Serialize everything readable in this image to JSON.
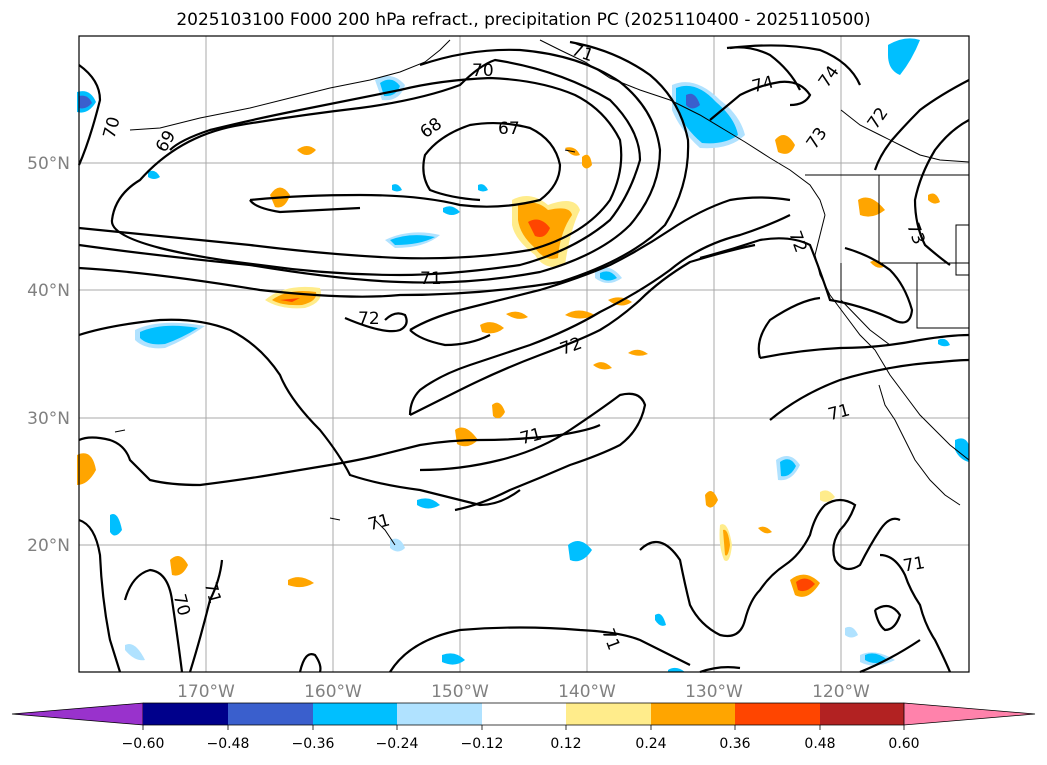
{
  "title": "2025103100 F000 200 hPa refract., precipitation PC (2025110400 - 2025110500)",
  "lon_labels": [
    "170°W",
    "160°W",
    "150°W",
    "140°W",
    "130°W",
    "120°W"
  ],
  "lat_labels": [
    "50°N",
    "40°N",
    "30°N",
    "20°N"
  ],
  "colorbar": {
    "colors": [
      "#9932CC",
      "#00008B",
      "#3A5FCD",
      "#00BFFF",
      "#B0E2FF",
      "#FFFFFF",
      "#FFEC8B",
      "#FFA500",
      "#FF4500",
      "#B22222",
      "#FF82AB"
    ],
    "ticks": [
      "−0.60",
      "−0.48",
      "−0.36",
      "−0.24",
      "−0.12",
      "0.12",
      "0.24",
      "0.36",
      "0.48",
      "0.60"
    ]
  },
  "contour_labels": [
    "70",
    "70",
    "69",
    "68",
    "67",
    "71",
    "72",
    "72",
    "71",
    "71",
    "73",
    "74",
    "74",
    "72",
    "72",
    "73",
    "71",
    "71",
    "71",
    "70",
    "71",
    "71"
  ]
}
